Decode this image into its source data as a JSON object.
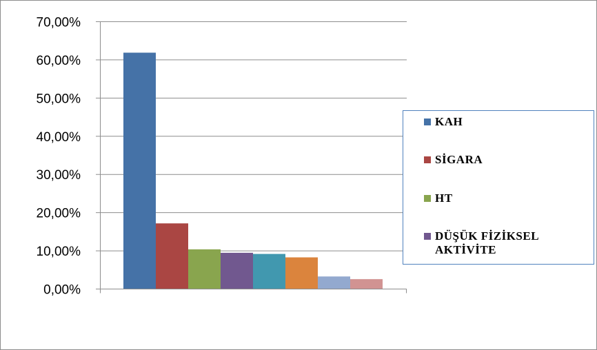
{
  "chart_data": {
    "type": "bar",
    "categories": [
      "KAH",
      "SİGARA",
      "HT",
      "DÜŞÜK FİZİKSEL AKTİVİTE",
      "",
      "",
      "",
      ""
    ],
    "values": [
      61.8,
      17.1,
      10.3,
      9.4,
      9.1,
      8.2,
      3.2,
      2.5
    ],
    "colors": [
      "#4572a7",
      "#aa4643",
      "#89a54e",
      "#71588f",
      "#4198af",
      "#db843d",
      "#93a9cf",
      "#d19392"
    ],
    "ylim": [
      0,
      70
    ],
    "yticks": [
      "0,00%",
      "10,00%",
      "20,00%",
      "30,00%",
      "40,00%",
      "50,00%",
      "60,00%",
      "70,00%"
    ],
    "grid": true,
    "legend_position": "right",
    "legend": [
      {
        "label": "KAH",
        "color": "#4572a7"
      },
      {
        "label": "SİGARA",
        "color": "#aa4643"
      },
      {
        "label": "HT",
        "color": "#89a54e"
      },
      {
        "label": "DÜŞÜK FİZİKSEL AKTİVİTE",
        "color": "#71588f"
      }
    ]
  }
}
